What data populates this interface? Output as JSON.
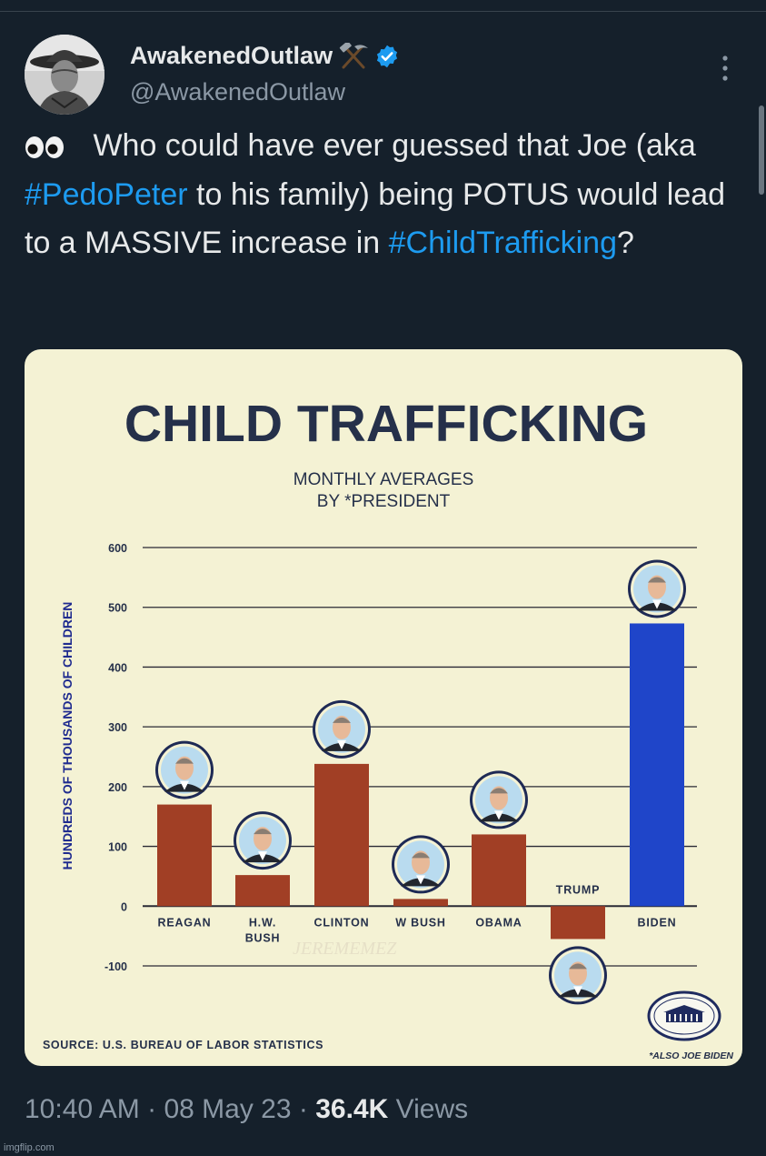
{
  "tweet": {
    "display_name": "AwakenedOutlaw",
    "handle": "@AwakenedOutlaw",
    "text_prefix": " Who could have ever guessed that Joe (aka ",
    "hashtag_1": "#PedoPeter",
    "text_middle": " to his family) being POTUS would lead to a MASSIVE increase in ",
    "hashtag_2": "#ChildTrafficking",
    "text_suffix": "?",
    "time": "10:40 AM",
    "date": "08 May 23",
    "views_count": "36.4K",
    "views_label": "Views"
  },
  "icons": {
    "name_emoji": "hammer-and-pick-icon",
    "verified": "verified-badge-icon",
    "more": "more-options-icon",
    "eyes": "eyes-icon",
    "seal": "white-house-seal-icon"
  },
  "colors": {
    "background": "#15202b",
    "link": "#1d9bf0",
    "chart_bg": "#f4f2d4",
    "bar_brown": "#a13f25",
    "bar_blue": "#1f45c9",
    "title_navy": "#25304a"
  },
  "watermark": "imgflip.com",
  "chart_data": {
    "type": "bar",
    "title": "CHILD TRAFFICKING",
    "subtitle_line1": "MONTHLY AVERAGES",
    "subtitle_line2": "BY *PRESIDENT",
    "ylabel": "HUNDREDS OF THOUSANDS OF CHILDREN",
    "xlabel": "",
    "ylim": [
      -100,
      600
    ],
    "yticks": [
      "600",
      "500",
      "400",
      "300",
      "200",
      "100",
      "0",
      "-100"
    ],
    "ytick_values": [
      600,
      500,
      400,
      300,
      200,
      100,
      0,
      -100
    ],
    "grid": true,
    "categories": [
      {
        "line1": "REAGAN",
        "line2": ""
      },
      {
        "line1": "H.W.",
        "line2": "BUSH"
      },
      {
        "line1": "CLINTON",
        "line2": ""
      },
      {
        "line1": "W BUSH",
        "line2": ""
      },
      {
        "line1": "OBAMA",
        "line2": ""
      },
      {
        "line1": "TRUMP",
        "line2": ""
      },
      {
        "line1": "BIDEN",
        "line2": ""
      }
    ],
    "values": [
      170,
      52,
      238,
      12,
      120,
      -55,
      473
    ],
    "bar_colors": [
      "#a13f25",
      "#a13f25",
      "#a13f25",
      "#a13f25",
      "#a13f25",
      "#a13f25",
      "#1f45c9"
    ],
    "source": "SOURCE: U.S. BUREAU OF LABOR STATISTICS",
    "footnote": "*ALSO JOE BIDEN",
    "signature": "JEREMEMEZ"
  }
}
